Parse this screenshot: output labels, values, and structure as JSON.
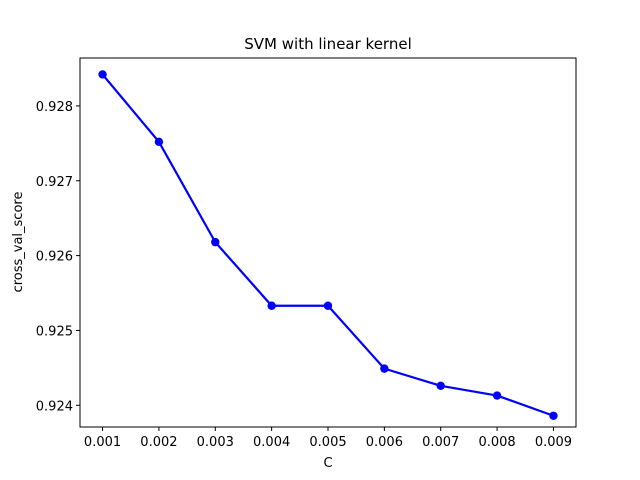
{
  "chart_data": {
    "type": "line",
    "title": "SVM with linear kernel",
    "xlabel": "C",
    "ylabel": "cross_val_score",
    "x": [
      0.001,
      0.002,
      0.003,
      0.004,
      0.005,
      0.006,
      0.007,
      0.008,
      0.009
    ],
    "series": [
      {
        "values": [
          0.92842,
          0.92752,
          0.92618,
          0.92533,
          0.92533,
          0.92449,
          0.92426,
          0.92413,
          0.92386
        ],
        "color": "#0000ff",
        "marker": "circle"
      }
    ],
    "xlim": [
      0.0006,
      0.0094
    ],
    "ylim": [
      0.92371,
      0.92864
    ],
    "xticks": [
      "0.001",
      "0.002",
      "0.003",
      "0.004",
      "0.005",
      "0.006",
      "0.007",
      "0.008",
      "0.009"
    ],
    "yticks": [
      "0.924",
      "0.925",
      "0.926",
      "0.927",
      "0.928"
    ],
    "grid": false,
    "legend": false
  }
}
